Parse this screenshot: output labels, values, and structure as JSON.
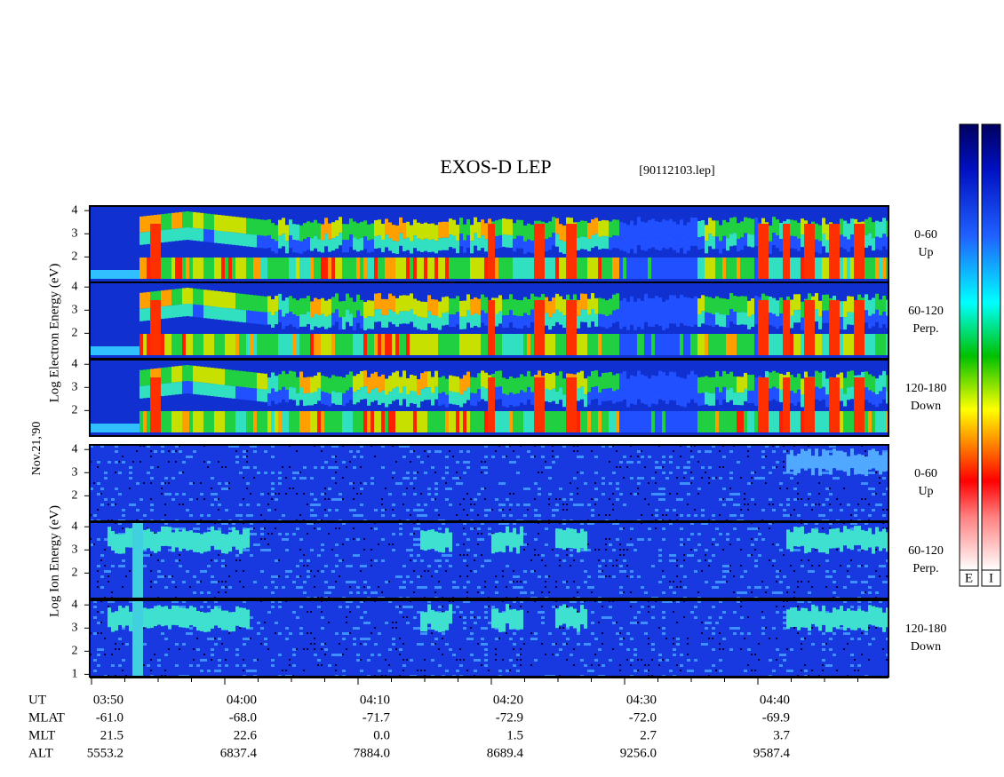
{
  "title": "EXOS-D LEP",
  "file": "[90112103.lep]",
  "date": "Nov.21,'90",
  "groups": [
    {
      "ylabel": "Log Electron Energy (eV)",
      "species": "electron"
    },
    {
      "ylabel": "Log Ion Energy (eV)",
      "species": "ion"
    }
  ],
  "panels": [
    {
      "group": 0,
      "ylim": [
        0.9,
        4.2
      ],
      "yticks": [
        2,
        3,
        4
      ],
      "pitch": [
        "0-60",
        "Up"
      ]
    },
    {
      "group": 0,
      "ylim": [
        0.9,
        4.2
      ],
      "yticks": [
        2,
        3,
        4
      ],
      "pitch": [
        "60-120",
        "Perp."
      ]
    },
    {
      "group": 0,
      "ylim": [
        0.9,
        4.2
      ],
      "yticks": [
        2,
        3,
        4
      ],
      "pitch": [
        "120-180",
        "Down"
      ]
    },
    {
      "group": 1,
      "ylim": [
        0.9,
        4.2
      ],
      "yticks": [
        2,
        3,
        4
      ],
      "pitch": [
        "0-60",
        "Up"
      ]
    },
    {
      "group": 1,
      "ylim": [
        0.9,
        4.2
      ],
      "yticks": [
        2,
        3,
        4
      ],
      "pitch": [
        "60-120",
        "Perp."
      ]
    },
    {
      "group": 1,
      "ylim": [
        0.9,
        4.2
      ],
      "yticks": [
        1,
        2,
        3,
        4
      ],
      "pitch": [
        "120-180",
        "Down"
      ]
    }
  ],
  "colorbars": [
    "E",
    "I"
  ],
  "table": {
    "rows": [
      {
        "label": "UT",
        "values": [
          "03:50",
          "04:00",
          "04:10",
          "04:20",
          "04:30",
          "04:40"
        ]
      },
      {
        "label": "MLAT",
        "values": [
          "-61.0",
          "-68.0",
          "-71.7",
          "-72.9",
          "-72.0",
          "-69.9"
        ]
      },
      {
        "label": "MLT",
        "values": [
          "21.5",
          "22.6",
          "0.0",
          "1.5",
          "2.7",
          "3.7"
        ]
      },
      {
        "label": "ALT",
        "values": [
          "5553.2",
          "6837.4",
          "7884.0",
          "8689.4",
          "9256.0",
          "9587.4"
        ]
      }
    ]
  }
}
